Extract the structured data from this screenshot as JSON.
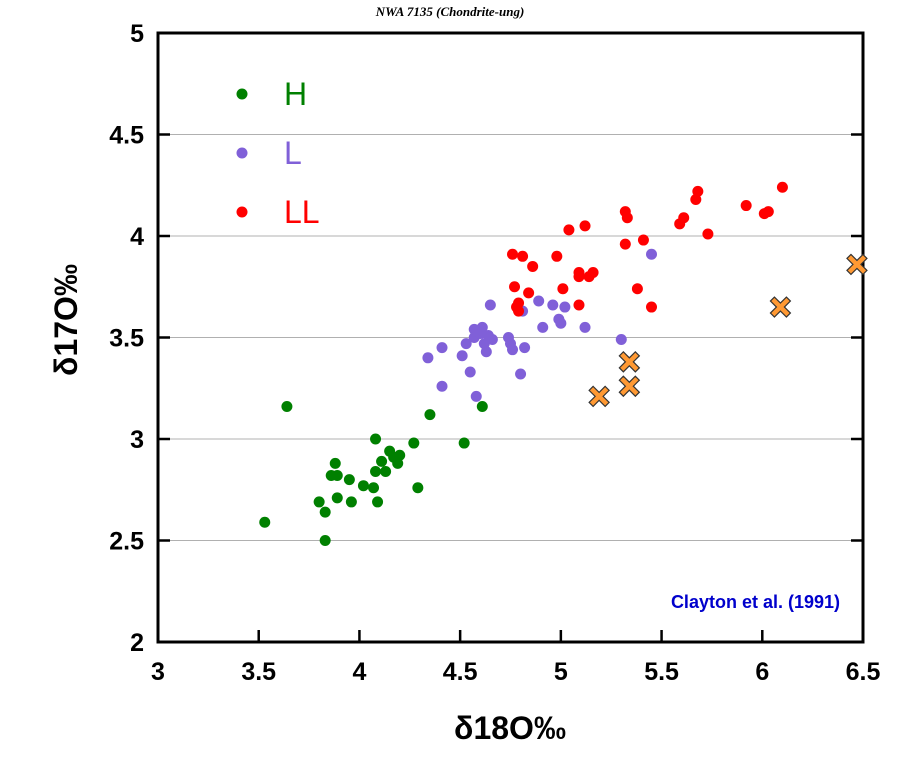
{
  "chart_data": {
    "type": "scatter",
    "title": "NWA 7135 (Chondrite-ung)",
    "xlabel": "δ18O‰",
    "ylabel": "δ17O‰",
    "xlim": [
      3,
      6.5
    ],
    "ylim": [
      2,
      5
    ],
    "xticks": [
      "3",
      "3.5",
      "4",
      "4.5",
      "5",
      "5.5",
      "6",
      "6.5"
    ],
    "yticks": [
      "2",
      "2.5",
      "3",
      "3.5",
      "4",
      "4.5",
      "5"
    ],
    "grid": "horizontal",
    "legend_position": "top-left",
    "annotation": "Clayton et al. (1991)",
    "annotation_color": "#0000cc",
    "series": [
      {
        "name": "H",
        "color": "#008000",
        "marker": "circle",
        "x": [
          3.53,
          3.64,
          3.8,
          3.83,
          3.83,
          3.86,
          3.88,
          3.89,
          3.89,
          3.95,
          3.96,
          4.02,
          4.07,
          4.08,
          4.08,
          4.09,
          4.11,
          4.13,
          4.15,
          4.17,
          4.19,
          4.2,
          4.27,
          4.29,
          4.35,
          4.52,
          4.61
        ],
        "y": [
          2.59,
          3.16,
          2.69,
          2.64,
          2.5,
          2.82,
          2.88,
          2.82,
          2.71,
          2.8,
          2.69,
          2.77,
          2.76,
          3.0,
          2.84,
          2.69,
          2.89,
          2.84,
          2.94,
          2.91,
          2.88,
          2.92,
          2.98,
          2.76,
          3.12,
          2.98,
          3.16
        ]
      },
      {
        "name": "L",
        "color": "#8060d8",
        "marker": "circle",
        "x": [
          4.34,
          4.41,
          4.41,
          4.51,
          4.53,
          4.55,
          4.57,
          4.58,
          4.57,
          4.6,
          4.61,
          4.62,
          4.63,
          4.64,
          4.65,
          4.66,
          4.74,
          4.75,
          4.76,
          4.8,
          4.81,
          4.82,
          4.89,
          4.91,
          4.96,
          4.99,
          5.0,
          5.02,
          5.12,
          5.3,
          5.45
        ],
        "y": [
          3.4,
          3.45,
          3.26,
          3.41,
          3.47,
          3.33,
          3.54,
          3.21,
          3.5,
          3.52,
          3.55,
          3.47,
          3.43,
          3.51,
          3.66,
          3.49,
          3.5,
          3.47,
          3.44,
          3.32,
          3.63,
          3.45,
          3.68,
          3.55,
          3.66,
          3.59,
          3.57,
          3.65,
          3.55,
          3.49,
          3.91
        ]
      },
      {
        "name": "LL",
        "color": "#ff0000",
        "marker": "circle",
        "x": [
          4.76,
          4.77,
          4.78,
          4.79,
          4.79,
          4.81,
          4.84,
          4.86,
          4.98,
          5.01,
          5.04,
          5.09,
          5.09,
          5.09,
          5.12,
          5.14,
          5.16,
          5.32,
          5.32,
          5.33,
          5.38,
          5.41,
          5.45,
          5.59,
          5.61,
          5.67,
          5.68,
          5.73,
          5.92,
          6.01,
          6.03,
          6.1
        ],
        "y": [
          3.91,
          3.75,
          3.65,
          3.67,
          3.63,
          3.9,
          3.72,
          3.85,
          3.9,
          3.74,
          4.03,
          3.82,
          3.8,
          3.66,
          4.05,
          3.8,
          3.82,
          3.96,
          4.12,
          4.09,
          3.74,
          3.98,
          3.65,
          4.06,
          4.09,
          4.18,
          4.22,
          4.01,
          4.15,
          4.11,
          4.12,
          4.24
        ]
      },
      {
        "color": "#ff9933",
        "marker": "x",
        "x": [
          5.19,
          5.34,
          5.34,
          6.09,
          6.47
        ],
        "y": [
          3.21,
          3.38,
          3.26,
          3.65,
          3.86
        ]
      }
    ]
  }
}
